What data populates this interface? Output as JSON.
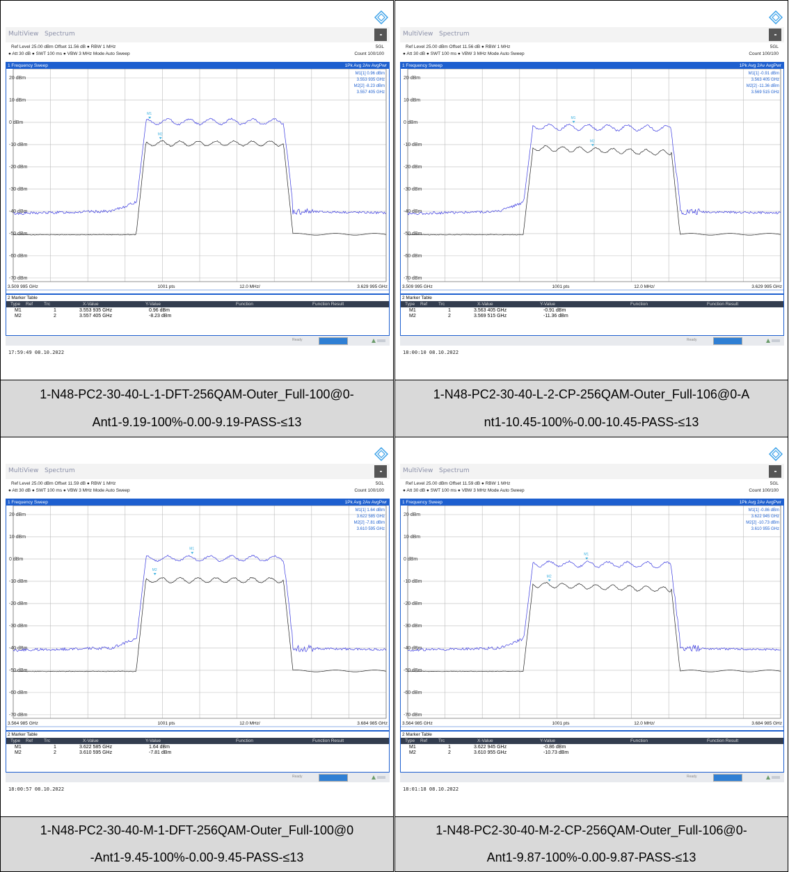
{
  "panels": [
    {
      "tab1": "MultiView",
      "tab2": "Spectrum",
      "ref_level": "Ref Level 25.00 dBm",
      "offset": "Offset 11.56 dB",
      "rbw": "RBW 1 MHz",
      "att": "Att        30 dB",
      "swt": "SWT   100 ms",
      "vbw": "VBW 3 MHz",
      "mode": "Mode Auto Sweep",
      "std": "5GL",
      "count": "Count 100/100",
      "sweep_title": "1 Frequency Sweep",
      "trace_info": "1Pk Avg   2Av AvgPwr",
      "marker_readout": [
        "M1[1]    0.96 dBm",
        "3.553 935 GHz",
        "M2[2]   -8.23 dBm",
        "3.557 405 GHz"
      ],
      "x_start": "3.509 995 GHz",
      "pts": "1001 pts",
      "span_div": "12.0 MHz/",
      "x_stop": "3.629 995 GHz",
      "mt_title": "2 Marker Table",
      "mt_headers": [
        "Type",
        "Ref",
        "Trc",
        "X-Value",
        "Y-Value",
        "Function",
        "Function Result"
      ],
      "markers": [
        {
          "type": "M1",
          "trc": "1",
          "x": "3.553 935 GHz",
          "y": "0.96 dBm"
        },
        {
          "type": "M2",
          "trc": "2",
          "x": "3.557 405 GHz",
          "y": "-8.23 dBm"
        }
      ],
      "status": "Ready",
      "timestamp": "17:59:49  08.10.2022",
      "caption_lines": [
        "1-N48-PC2-30-40-L-1-DFT-256QAM-Outer_Full-100@0-",
        "Ant1-9.19-100%-0.00-9.19-PASS-≤13"
      ],
      "variant": "dft",
      "m1_frac": 0.366,
      "m2_frac": 0.395
    },
    {
      "tab1": "MultiView",
      "tab2": "Spectrum",
      "ref_level": "Ref Level 25.00 dBm",
      "offset": "Offset 11.56 dB",
      "rbw": "RBW 1 MHz",
      "att": "Att        30 dB",
      "swt": "SWT   100 ms",
      "vbw": "VBW 3 MHz",
      "mode": "Mode Auto Sweep",
      "std": "5GL",
      "count": "Count 100/100",
      "sweep_title": "1 Frequency Sweep",
      "trace_info": "1Pk Avg   2Av AvgPwr",
      "marker_readout": [
        "M1[1]   -0.91 dBm",
        "3.563 405 GHz",
        "M2[2]  -11.36 dBm",
        "3.569 515 GHz"
      ],
      "x_start": "3.509 995 GHz",
      "pts": "1001 pts",
      "span_div": "12.0 MHz/",
      "x_stop": "3.629 995 GHz",
      "mt_title": "2 Marker Table",
      "mt_headers": [
        "Type",
        "Ref",
        "Trc",
        "X-Value",
        "Y-Value",
        "Function",
        "Function Result"
      ],
      "markers": [
        {
          "type": "M1",
          "trc": "1",
          "x": "3.563 405 GHz",
          "y": "-0.91 dBm"
        },
        {
          "type": "M2",
          "trc": "2",
          "x": "3.569 515 GHz",
          "y": "-11.36 dBm"
        }
      ],
      "status": "Ready",
      "timestamp": "18:00:10  08.10.2022",
      "caption_lines": [
        "1-N48-PC2-30-40-L-2-CP-256QAM-Outer_Full-106@0-A",
        "nt1-10.45-100%-0.00-10.45-PASS-≤13"
      ],
      "variant": "cp",
      "m1_frac": 0.445,
      "m2_frac": 0.496
    },
    {
      "tab1": "MultiView",
      "tab2": "Spectrum",
      "ref_level": "Ref Level 25.00 dBm",
      "offset": "Offset 11.59 dB",
      "rbw": "RBW 1 MHz",
      "att": "Att        30 dB",
      "swt": "SWT   100 ms",
      "vbw": "VBW 3 MHz",
      "mode": "Mode Auto Sweep",
      "std": "5GL",
      "count": "Count 100/100",
      "sweep_title": "1 Frequency Sweep",
      "trace_info": "1Pk Avg   2Av AvgPwr",
      "marker_readout": [
        "M1[1]    1.64 dBm",
        "3.622 585 GHz",
        "M2[2]   -7.81 dBm",
        "3.610 595 GHz"
      ],
      "x_start": "3.564 985 GHz",
      "pts": "1001 pts",
      "span_div": "12.0 MHz/",
      "x_stop": "3.684 985 GHz",
      "mt_title": "2 Marker Table",
      "mt_headers": [
        "Type",
        "Ref",
        "Trc",
        "X-Value",
        "Y-Value",
        "Function",
        "Function Result"
      ],
      "markers": [
        {
          "type": "M1",
          "trc": "1",
          "x": "3.622 585 GHz",
          "y": "1.64 dBm"
        },
        {
          "type": "M2",
          "trc": "2",
          "x": "3.610 595 GHz",
          "y": "-7.81 dBm"
        }
      ],
      "status": "Ready",
      "timestamp": "18:00:57  08.10.2022",
      "caption_lines": [
        "1-N48-PC2-30-40-M-1-DFT-256QAM-Outer_Full-100@0",
        "-Ant1-9.45-100%-0.00-9.45-PASS-≤13"
      ],
      "variant": "dft",
      "m1_frac": 0.48,
      "m2_frac": 0.38
    },
    {
      "tab1": "MultiView",
      "tab2": "Spectrum",
      "ref_level": "Ref Level 25.00 dBm",
      "offset": "Offset 11.59 dB",
      "rbw": "RBW 1 MHz",
      "att": "Att        30 dB",
      "swt": "SWT   100 ms",
      "vbw": "VBW 3 MHz",
      "mode": "Mode Auto Sweep",
      "std": "5GL",
      "count": "Count 100/100",
      "sweep_title": "1 Frequency Sweep",
      "trace_info": "1Pk Avg   2Av AvgPwr",
      "marker_readout": [
        "M1[1]   -0.86 dBm",
        "3.622 945 GHz",
        "M2[2]  -10.73 dBm",
        "3.610 955 GHz"
      ],
      "x_start": "3.564 985 GHz",
      "pts": "1001 pts",
      "span_div": "12.0 MHz/",
      "x_stop": "3.684 985 GHz",
      "mt_title": "2 Marker Table",
      "mt_headers": [
        "Type",
        "Ref",
        "Trc",
        "X-Value",
        "Y-Value",
        "Function",
        "Function Result"
      ],
      "markers": [
        {
          "type": "M1",
          "trc": "1",
          "x": "3.622 945 GHz",
          "y": "-0.86 dBm"
        },
        {
          "type": "M2",
          "trc": "2",
          "x": "3.610 955 GHz",
          "y": "-10.73 dBm"
        }
      ],
      "status": "Ready",
      "timestamp": "18:01:18  08.10.2022",
      "caption_lines": [
        "1-N48-PC2-30-40-M-2-CP-256QAM-Outer_Full-106@0-",
        "Ant1-9.87-100%-0.00-9.87-PASS-≤13"
      ],
      "variant": "cp",
      "m1_frac": 0.48,
      "m2_frac": 0.38
    }
  ],
  "y_ticks": [
    "20 dBm",
    "10 dBm",
    "0 dBm",
    "-10 dBm",
    "-20 dBm",
    "-30 dBm",
    "-40 dBm",
    "-50 dBm",
    "-60 dBm",
    "-70 dBm"
  ],
  "colors": {
    "trace1": "#3a3ae0",
    "trace2": "#222222",
    "accent": "#1d5fcf",
    "caption_bg": "#d9d9d9",
    "marker": "#3ab0e0"
  }
}
